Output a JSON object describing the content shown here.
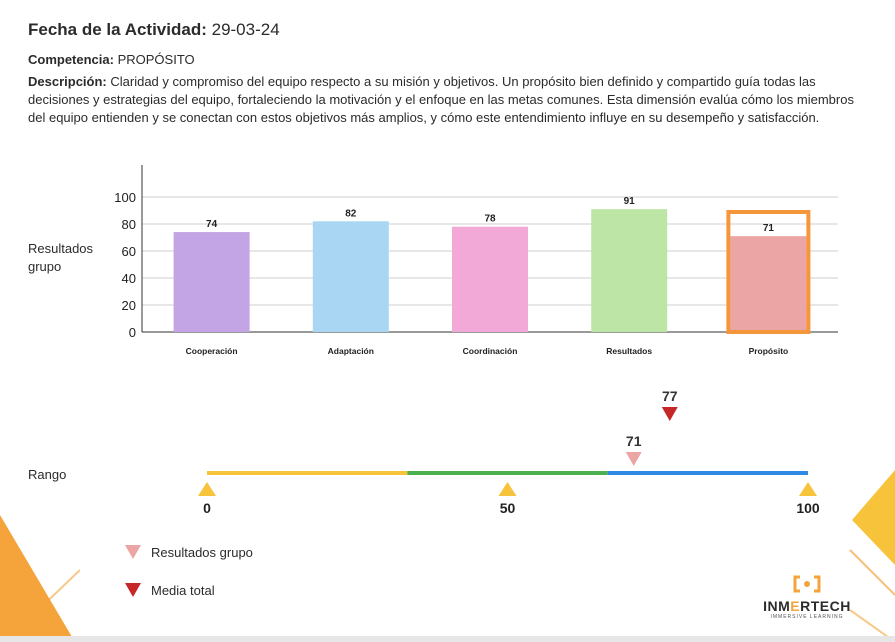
{
  "header": {
    "fecha_label": "Fecha de la Actividad:",
    "fecha_value": "29-03-24",
    "competencia_label": "Competencia:",
    "competencia_value": "PROPÓSITO",
    "descripcion_label": "Descripción:",
    "descripcion_text": "Claridad y compromiso del equipo respecto a su misión y objetivos. Un propósito bien definido y compartido guía todas las decisiones y estrategias del equipo, fortaleciendo la motivación y el enfoque en las metas comunes. Esta dimensión evalúa cómo los miembros del equipo entienden y se conectan con estos objetivos más amplios, y cómo este entendimiento influye en su desempeño y satisfacción."
  },
  "chart_label": "Resultados grupo",
  "chart_data": [
    {
      "type": "bar",
      "categories": [
        "Cooperación",
        "Adaptación",
        "Coordinación",
        "Resultados",
        "Propósito"
      ],
      "values": [
        74,
        82,
        78,
        91,
        71
      ],
      "colors": [
        "#c3a4e4",
        "#a9d6f3",
        "#f2a9d7",
        "#bde5a5",
        "#eba5a4"
      ],
      "highlight_index": 4,
      "highlight_color": "#f4963a",
      "ylim": [
        0,
        100
      ],
      "yticks": [
        0,
        20,
        40,
        60,
        80,
        100
      ],
      "grid": true
    },
    {
      "type": "range",
      "label": "Rango",
      "range": [
        0,
        100
      ],
      "ticks": [
        0,
        50,
        100
      ],
      "segment_colors": [
        "#f6c33b",
        "#4caf50",
        "#2f8ae6"
      ],
      "markers": [
        {
          "series": "Resultados grupo",
          "value": 71,
          "color": "#eba5a4"
        },
        {
          "series": "Media total",
          "value": 77,
          "color": "#c62828"
        }
      ]
    }
  ],
  "legend": [
    {
      "label": "Resultados grupo",
      "color": "#eba5a4"
    },
    {
      "label": "Media total",
      "color": "#c62828"
    }
  ],
  "logo": {
    "text_pre": "INM",
    "text_accent": "E",
    "text_post": "RTECH",
    "tagline": "IMMERSIVE LEARNING",
    "color": "#f4a43a"
  }
}
